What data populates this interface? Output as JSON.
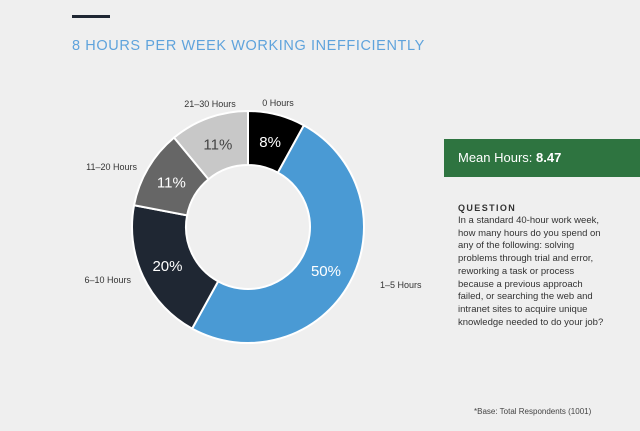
{
  "chart_data": {
    "type": "pie",
    "donut": true,
    "title": "8 HOURS PER WEEK WORKING INEFFICIENTLY",
    "categories": [
      "0 Hours",
      "1–5 Hours",
      "6–10 Hours",
      "11–20 Hours",
      "21–30 Hours"
    ],
    "values": [
      8,
      50,
      20,
      11,
      11
    ],
    "data_labels": [
      "8%",
      "50%",
      "20%",
      "11%",
      "11%"
    ],
    "colors": [
      "#000000",
      "#4a9ad4",
      "#1f2733",
      "#666666",
      "#c8c8c8"
    ],
    "label_colors": [
      "#ffffff",
      "#ffffff",
      "#ffffff",
      "#ffffff",
      "#444444"
    ]
  },
  "mean": {
    "label": "Mean Hours: ",
    "value": "8.47"
  },
  "question": {
    "heading": "QUESTION",
    "text": "In a standard 40-hour work week, how many hours do you spend on any of the following: solving problems through trial and error, reworking a task or process because a previous approach failed, or searching the web and intranet sites to acquire unique knowledge needed to do your job?"
  },
  "footnote": "*Base: Total Respondents (1001)",
  "colors": {
    "accent": "#5fa3dc",
    "mean_box": "#2e7440",
    "background": "#efefef"
  }
}
